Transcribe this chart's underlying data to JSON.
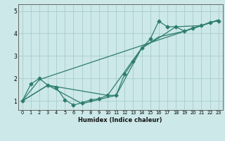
{
  "xlabel": "Humidex (Indice chaleur)",
  "bg_color": "#cce8e8",
  "line_color": "#2e7d6e",
  "grid_color": "#aacccc",
  "xlim": [
    -0.5,
    23.5
  ],
  "ylim": [
    0.6,
    5.3
  ],
  "yticks": [
    1,
    2,
    3,
    4,
    5
  ],
  "xticks": [
    0,
    1,
    2,
    3,
    4,
    5,
    6,
    7,
    8,
    9,
    10,
    11,
    12,
    13,
    14,
    15,
    16,
    17,
    18,
    19,
    20,
    21,
    22,
    23
  ],
  "line1_x": [
    0,
    1,
    2,
    3,
    4,
    5,
    6,
    7,
    8,
    9,
    10,
    11,
    12,
    13,
    14,
    15,
    16,
    17,
    18,
    19,
    20,
    21,
    22,
    23
  ],
  "line1_y": [
    1.0,
    1.75,
    2.0,
    1.7,
    1.6,
    1.05,
    0.82,
    0.92,
    1.05,
    1.1,
    1.25,
    1.25,
    2.2,
    2.75,
    3.35,
    3.75,
    4.55,
    4.3,
    4.3,
    4.1,
    4.25,
    4.35,
    4.5,
    4.55
  ],
  "line2_x": [
    0,
    2,
    23
  ],
  "line2_y": [
    1.0,
    1.95,
    4.6
  ],
  "line3_x": [
    0,
    3,
    10,
    14,
    16,
    18,
    21,
    23
  ],
  "line3_y": [
    1.0,
    1.7,
    1.25,
    3.35,
    3.8,
    4.3,
    4.35,
    4.6
  ],
  "line4_x": [
    0,
    3,
    7,
    11,
    14,
    16,
    19,
    21,
    23
  ],
  "line4_y": [
    1.0,
    1.7,
    0.88,
    1.25,
    3.35,
    3.85,
    4.1,
    4.35,
    4.6
  ]
}
